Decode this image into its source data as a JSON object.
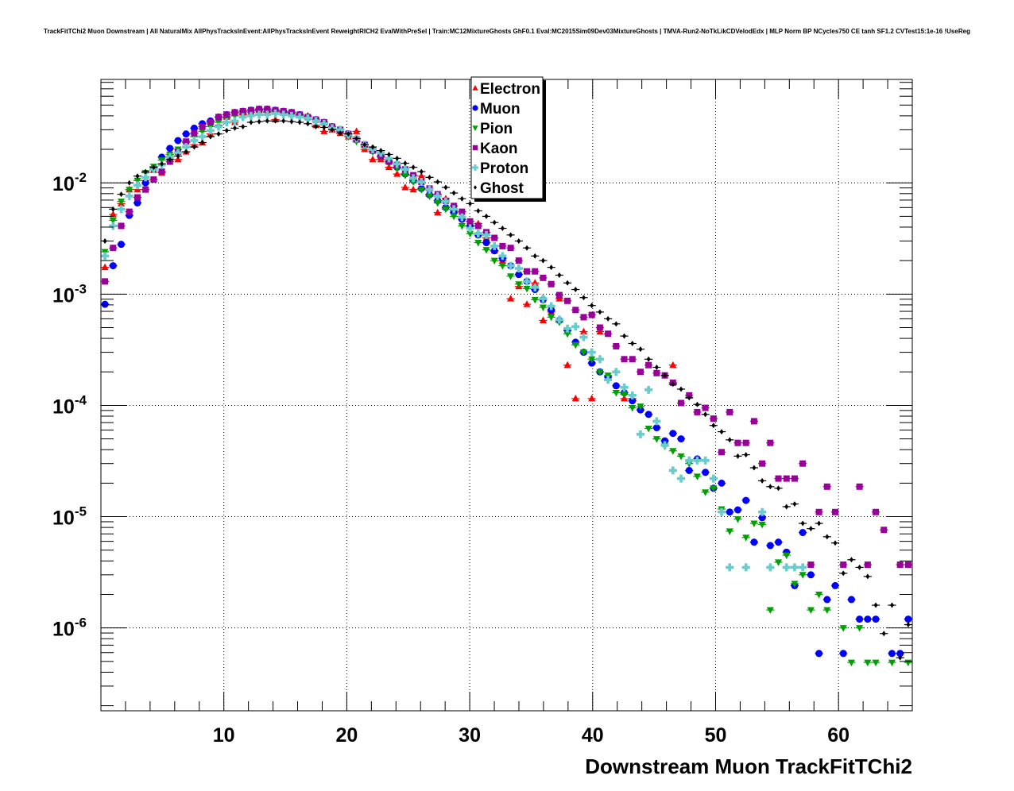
{
  "chart_data": {
    "type": "scatter",
    "title": "TrackFitTChi2 Muon Downstream | All NaturalMix AllPhysTracksInEvent:AllPhysTracksInEvent ReweightRICH2 EvalWithPreSel | Train:MC12MixtureGhosts GhF0.1 Eval:MC2015Sim09Dev03MixtureGhosts | TMVA-Run2-NoTkLikCDVelodEdx | MLP Norm BP NCycles750 CE tanh SF1.2 CVTest15:1e-16 !UseReg",
    "xlabel": "Downstream Muon TrackFitTChi2",
    "ylabel": "",
    "xlim": [
      0,
      66
    ],
    "ylim": [
      1.8e-07,
      0.085
    ],
    "yscale": "log",
    "grid": true,
    "legend_position": "top-center",
    "bins": 100,
    "x_ticks": [
      {
        "v": 10,
        "label": "10"
      },
      {
        "v": 20,
        "label": "20"
      },
      {
        "v": 30,
        "label": "30"
      },
      {
        "v": 40,
        "label": "40"
      },
      {
        "v": 50,
        "label": "50"
      },
      {
        "v": 60,
        "label": "60"
      }
    ],
    "y_ticks": [
      {
        "v": 0.01,
        "base": "10",
        "exp": "-2"
      },
      {
        "v": 0.001,
        "base": "10",
        "exp": "-3"
      },
      {
        "v": 0.0001,
        "base": "10",
        "exp": "-4"
      },
      {
        "v": 1e-05,
        "base": "10",
        "exp": "-5"
      },
      {
        "v": 1e-06,
        "base": "10",
        "exp": "-6"
      }
    ],
    "series": [
      {
        "name": "Electron",
        "color": "#ff0000",
        "marker": "triangle-up",
        "values": [
          0.00174,
          0.0052,
          0.0065,
          0.0087,
          0.0087,
          0.0105,
          0.013,
          0.0123,
          0.018,
          0.0162,
          0.019,
          0.022,
          0.023,
          0.0275,
          0.033,
          0.039,
          0.035,
          0.041,
          0.043,
          0.045,
          0.043,
          0.037,
          0.043,
          0.042,
          0.041,
          0.04,
          0.033,
          0.029,
          0.03,
          0.028,
          0.026,
          0.029,
          0.02,
          0.0162,
          0.0162,
          0.0138,
          0.012,
          0.0091,
          0.0087,
          0.0115,
          0.0079,
          0.0054,
          0.0072,
          0.0056,
          0.005,
          0.0045,
          0.0043,
          0.0032,
          0.00245,
          0.002,
          0.00091,
          0.00117,
          0.00081,
          0.00126,
          0.00058,
          0.00069,
          0.00091,
          0.00023,
          0.000115,
          0.00046,
          0.000115,
          0.00046,
          null,
          null,
          0.000115,
          0.000115,
          null,
          null,
          null,
          null,
          0.00023,
          null,
          null,
          null,
          null,
          null,
          null,
          null,
          null,
          null,
          null,
          null,
          null,
          null,
          null,
          null,
          null,
          null,
          null,
          null,
          null,
          null,
          null,
          null,
          null,
          null,
          null,
          null,
          null,
          null
        ]
      },
      {
        "name": "Muon",
        "color": "#0000ff",
        "marker": "circle",
        "values": [
          0.00081,
          0.0018,
          0.0028,
          0.0051,
          0.0066,
          0.01,
          0.0135,
          0.017,
          0.0204,
          0.024,
          0.0275,
          0.031,
          0.034,
          0.036,
          0.039,
          0.041,
          0.043,
          0.044,
          0.045,
          0.046,
          0.046,
          0.045,
          0.044,
          0.043,
          0.041,
          0.039,
          0.037,
          0.035,
          0.032,
          0.03,
          0.0275,
          0.0245,
          0.022,
          0.0195,
          0.0174,
          0.0155,
          0.0138,
          0.012,
          0.0105,
          0.0089,
          0.0078,
          0.0069,
          0.006,
          0.0054,
          0.0047,
          0.0041,
          0.0034,
          0.0029,
          0.00245,
          0.0021,
          0.0018,
          0.0015,
          0.0013,
          0.0011,
          0.00089,
          0.00072,
          0.00058,
          0.00047,
          0.00037,
          0.0003,
          0.00024,
          0.0002,
          0.00018,
          0.00015,
          0.00013,
          0.00011,
          9.1e-05,
          8.3e-05,
          6.3e-05,
          4.8e-05,
          5.6e-05,
          5e-05,
          2.6e-05,
          3.3e-05,
          2.5e-05,
          1.8e-05,
          2e-05,
          1.1e-05,
          1.15e-05,
          1.4e-05,
          5.9e-06,
          9.8e-06,
          5.5e-06,
          5.9e-06,
          4.8e-06,
          2.4e-06,
          7.2e-06,
          3e-06,
          5.9e-07,
          1.8e-06,
          2.4e-06,
          5.9e-07,
          1.8e-06,
          1.2e-06,
          1.2e-06,
          1.2e-06,
          null,
          5.9e-07,
          5.9e-07,
          1.2e-06
        ]
      },
      {
        "name": "Pion",
        "color": "#00a000",
        "marker": "triangle-down",
        "values": [
          0.0024,
          0.0046,
          0.0068,
          0.0087,
          0.0105,
          0.0123,
          0.014,
          0.016,
          0.018,
          0.02,
          0.023,
          0.026,
          0.029,
          0.032,
          0.035,
          0.038,
          0.04,
          0.042,
          0.043,
          0.044,
          0.044,
          0.044,
          0.043,
          0.042,
          0.04,
          0.038,
          0.036,
          0.034,
          0.031,
          0.029,
          0.026,
          0.0235,
          0.021,
          0.019,
          0.017,
          0.015,
          0.0135,
          0.0117,
          0.0102,
          0.0087,
          0.0076,
          0.0066,
          0.0058,
          0.005,
          0.0041,
          0.0035,
          0.0029,
          0.0025,
          0.002,
          0.0018,
          0.00145,
          0.00123,
          0.00112,
          0.00089,
          0.00076,
          0.00062,
          0.00056,
          0.00044,
          0.00035,
          0.0003,
          0.00026,
          0.0002,
          0.000186,
          0.00013,
          0.000126,
          9.5e-05,
          9.8e-05,
          6.2e-05,
          5e-05,
          4.3e-05,
          3.9e-05,
          3.5e-05,
          3e-05,
          2.3e-05,
          1.66e-05,
          1.8e-05,
          1.17e-05,
          7.4e-06,
          9.5e-06,
          6.5e-06,
          8.7e-06,
          8.5e-06,
          1.45e-06,
          3.9e-06,
          4.5e-06,
          2.5e-06,
          3e-06,
          1.45e-06,
          2e-06,
          1.45e-06,
          null,
          1e-06,
          4.9e-07,
          1e-06,
          4.9e-07,
          4.9e-07,
          null,
          4.9e-07,
          null,
          4.9e-07
        ]
      },
      {
        "name": "Kaon",
        "color": "#990099",
        "marker": "square",
        "values": [
          0.0013,
          0.0026,
          0.0041,
          0.0055,
          0.0074,
          0.0087,
          0.0107,
          0.0126,
          0.0155,
          0.019,
          0.0235,
          0.028,
          0.032,
          0.035,
          0.039,
          0.041,
          0.043,
          0.044,
          0.045,
          0.046,
          0.046,
          0.045,
          0.044,
          0.043,
          0.041,
          0.039,
          0.037,
          0.035,
          0.032,
          0.03,
          0.0275,
          0.0245,
          0.022,
          0.0195,
          0.0174,
          0.0155,
          0.0145,
          0.0132,
          0.0117,
          0.0102,
          0.0089,
          0.0079,
          0.0069,
          0.0062,
          0.0055,
          0.0045,
          0.0041,
          0.0036,
          0.0032,
          0.0027,
          0.0026,
          0.002,
          0.0016,
          0.0016,
          0.0014,
          0.00123,
          0.00098,
          0.00087,
          0.00072,
          0.00062,
          0.00065,
          0.0005,
          0.00044,
          0.00034,
          0.00026,
          0.00026,
          0.0002,
          0.00023,
          0.000195,
          0.000186,
          0.00016,
          0.000105,
          0.000123,
          8.7e-05,
          9.5e-05,
          7.6e-05,
          3.8e-05,
          8.7e-05,
          4.6e-05,
          4.6e-05,
          7.2e-05,
          3e-05,
          4.6e-05,
          2.2e-05,
          2.2e-05,
          2.2e-05,
          3e-05,
          3.7e-06,
          1.1e-05,
          1.86e-05,
          1.1e-05,
          3.7e-06,
          null,
          1.86e-05,
          3.7e-06,
          1.1e-05,
          7.6e-06,
          null,
          3.7e-06,
          3.7e-06
        ]
      },
      {
        "name": "Proton",
        "color": "#66cccc",
        "marker": "cross",
        "values": [
          0.0022,
          0.0041,
          0.0058,
          0.0076,
          0.0095,
          0.0112,
          0.0132,
          0.0145,
          0.017,
          0.0186,
          0.021,
          0.024,
          0.026,
          0.0295,
          0.032,
          0.035,
          0.036,
          0.039,
          0.04,
          0.041,
          0.041,
          0.042,
          0.041,
          0.04,
          0.039,
          0.038,
          0.036,
          0.034,
          0.031,
          0.03,
          0.027,
          0.025,
          0.022,
          0.02,
          0.0186,
          0.0166,
          0.0148,
          0.0132,
          0.011,
          0.0102,
          0.0087,
          0.0076,
          0.0068,
          0.0058,
          0.0049,
          0.0039,
          0.0035,
          0.0034,
          0.0027,
          0.0022,
          0.0018,
          0.0017,
          0.0013,
          0.00115,
          0.00091,
          0.00078,
          0.00059,
          0.00049,
          0.00051,
          0.00041,
          0.0003,
          0.00026,
          0.00017,
          0.0002,
          0.000145,
          0.000123,
          5.5e-05,
          0.000138,
          7.2e-05,
          4.4e-05,
          2.6e-05,
          2.2e-05,
          3.2e-05,
          3.2e-05,
          3.2e-05,
          2.2e-05,
          1.1e-05,
          3.5e-06,
          null,
          3.5e-06,
          null,
          1.1e-05,
          3.5e-06,
          null,
          3.5e-06,
          3.5e-06,
          3.5e-06,
          null,
          null,
          null,
          null,
          null,
          null,
          null,
          null,
          null,
          null,
          null,
          null,
          null
        ]
      },
      {
        "name": "Ghost",
        "color": "#000000",
        "marker": "diamond",
        "values": [
          0.003,
          0.0058,
          0.0079,
          0.01,
          0.0115,
          0.0126,
          0.0138,
          0.0148,
          0.0162,
          0.0174,
          0.019,
          0.021,
          0.023,
          0.026,
          0.0275,
          0.0295,
          0.031,
          0.032,
          0.035,
          0.0355,
          0.036,
          0.036,
          0.036,
          0.0355,
          0.035,
          0.034,
          0.032,
          0.0315,
          0.03,
          0.028,
          0.0275,
          0.025,
          0.022,
          0.021,
          0.0195,
          0.018,
          0.0166,
          0.015,
          0.0138,
          0.0126,
          0.0112,
          0.0102,
          0.0091,
          0.0081,
          0.0072,
          0.0065,
          0.0056,
          0.005,
          0.0044,
          0.0039,
          0.0034,
          0.003,
          0.0026,
          0.0022,
          0.002,
          0.00174,
          0.00148,
          0.00126,
          0.0011,
          0.00093,
          0.00079,
          0.00069,
          0.0006,
          0.00054,
          0.00042,
          0.00036,
          0.00032,
          0.00026,
          0.00022,
          0.000186,
          0.000155,
          0.00014,
          0.000117,
          0.000102,
          8.3e-05,
          6.6e-05,
          5.8e-05,
          4.9e-05,
          3.5e-05,
          3.6e-05,
          2.75e-05,
          2.1e-05,
          1.86e-05,
          1.8e-05,
          1.23e-05,
          1.3e-05,
          8.7e-06,
          7.8e-06,
          8.7e-06,
          6.6e-06,
          5.8e-06,
          3.1e-06,
          4.1e-06,
          3.5e-06,
          2.9e-06,
          1.6e-06,
          8.9e-07,
          1.6e-06,
          5.4e-07,
          1.07e-06
        ]
      }
    ]
  }
}
